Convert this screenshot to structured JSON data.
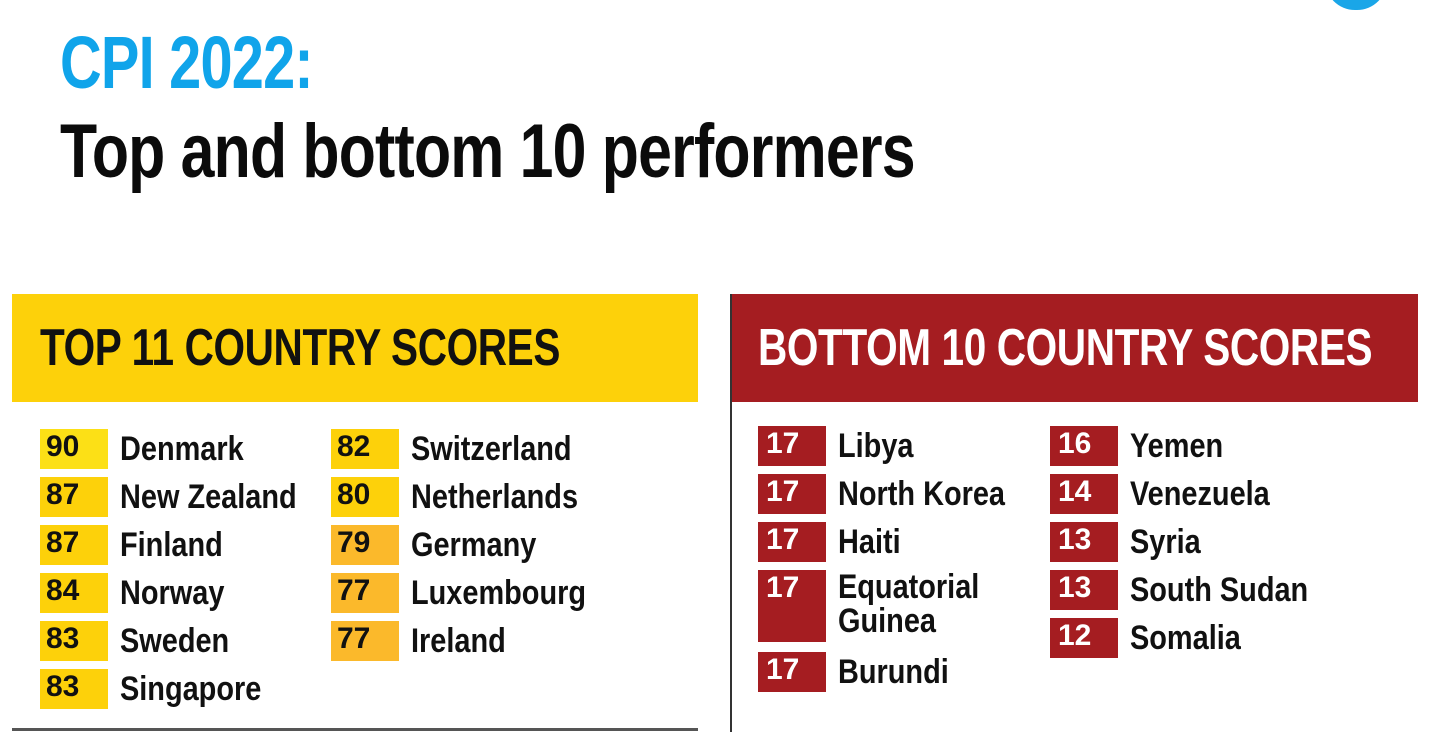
{
  "title": {
    "line1": "CPI 2022:",
    "line2": "Top and bottom 10 performers"
  },
  "top_panel": {
    "heading": "TOP 11 COUNTRY SCORES",
    "color": "#fdd10a",
    "col1": [
      {
        "score": "90",
        "country": "Denmark"
      },
      {
        "score": "87",
        "country": "New Zealand"
      },
      {
        "score": "87",
        "country": "Finland"
      },
      {
        "score": "84",
        "country": "Norway"
      },
      {
        "score": "83",
        "country": "Sweden"
      },
      {
        "score": "83",
        "country": "Singapore"
      }
    ],
    "col2": [
      {
        "score": "82",
        "country": "Switzerland"
      },
      {
        "score": "80",
        "country": "Netherlands"
      },
      {
        "score": "79",
        "country": "Germany"
      },
      {
        "score": "77",
        "country": "Luxembourg"
      },
      {
        "score": "77",
        "country": "Ireland"
      }
    ]
  },
  "bottom_panel": {
    "heading": "BOTTOM 10 COUNTRY SCORES",
    "color": "#a51d21",
    "col1": [
      {
        "score": "17",
        "country": "Libya"
      },
      {
        "score": "17",
        "country": "North Korea"
      },
      {
        "score": "17",
        "country": "Haiti"
      },
      {
        "score": "17",
        "country": "Equatorial Guinea"
      },
      {
        "score": "17",
        "country": "Burundi"
      }
    ],
    "col2": [
      {
        "score": "16",
        "country": "Yemen"
      },
      {
        "score": "14",
        "country": "Venezuela"
      },
      {
        "score": "13",
        "country": "Syria"
      },
      {
        "score": "13",
        "country": "South Sudan"
      },
      {
        "score": "12",
        "country": "Somalia"
      }
    ]
  }
}
